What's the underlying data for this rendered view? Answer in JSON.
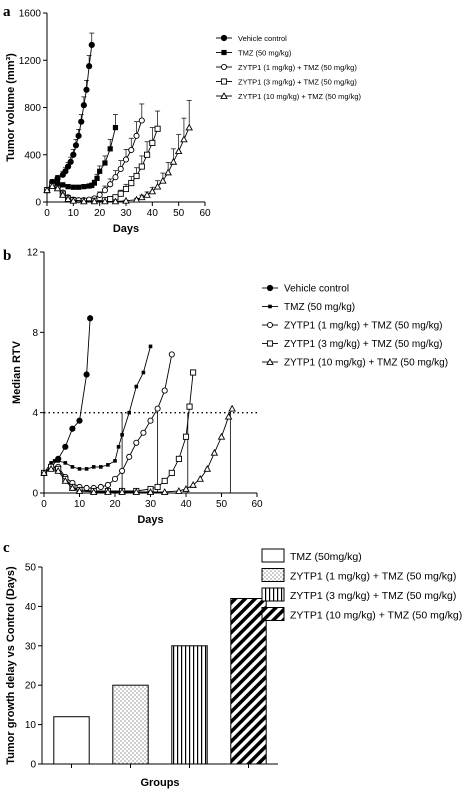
{
  "figure": {
    "panels": [
      "a",
      "b",
      "c"
    ]
  },
  "chart_data": [
    {
      "panel": "a",
      "type": "line",
      "xlabel": "Days",
      "ylabel": "Tumor volume (mm³)",
      "xlim": [
        0,
        60
      ],
      "ylim": [
        0,
        1600
      ],
      "xticks": [
        0,
        10,
        20,
        30,
        40,
        50,
        60
      ],
      "yticks": [
        0,
        400,
        800,
        1200,
        1600
      ],
      "legend_position": "right",
      "series": [
        {
          "name": "Vehicle control",
          "marker": "filled-circle",
          "line": "solid",
          "x": [
            0,
            2,
            4,
            6,
            7,
            8,
            9,
            10,
            11,
            12,
            13,
            14,
            15,
            16,
            17
          ],
          "y": [
            100,
            170,
            200,
            230,
            260,
            300,
            340,
            400,
            480,
            560,
            680,
            820,
            950,
            1150,
            1330
          ],
          "err": [
            0,
            20,
            25,
            30,
            30,
            35,
            40,
            45,
            50,
            55,
            60,
            70,
            80,
            90,
            100
          ]
        },
        {
          "name": "TMZ (50 mg/kg)",
          "marker": "filled-square",
          "line": "solid",
          "x": [
            0,
            2,
            4,
            6,
            8,
            10,
            12,
            14,
            16,
            17,
            18,
            19,
            20,
            22,
            24,
            26
          ],
          "y": [
            100,
            165,
            160,
            145,
            130,
            125,
            125,
            130,
            135,
            140,
            160,
            200,
            260,
            330,
            450,
            630
          ],
          "err": [
            0,
            20,
            20,
            18,
            15,
            15,
            15,
            15,
            18,
            20,
            25,
            35,
            45,
            60,
            80,
            110
          ]
        },
        {
          "name": "ZYTP1 (1 mg/kg) + TMZ (50 mg/kg)",
          "marker": "open-circle",
          "line": "solid",
          "x": [
            0,
            2,
            4,
            6,
            8,
            10,
            12,
            14,
            16,
            18,
            20,
            22,
            24,
            26,
            28,
            30,
            32,
            34,
            36
          ],
          "y": [
            100,
            140,
            120,
            80,
            40,
            20,
            15,
            15,
            20,
            30,
            60,
            100,
            150,
            210,
            280,
            360,
            440,
            560,
            690
          ],
          "err": [
            0,
            20,
            20,
            15,
            10,
            8,
            8,
            8,
            10,
            15,
            25,
            35,
            45,
            55,
            70,
            85,
            100,
            120,
            140
          ]
        },
        {
          "name": "ZYTP1 (3 mg/kg) + TMZ (50 mg/kg)",
          "marker": "open-square",
          "line": "solid",
          "x": [
            0,
            2,
            4,
            6,
            8,
            10,
            14,
            18,
            22,
            24,
            26,
            28,
            30,
            32,
            34,
            36,
            38,
            40,
            42
          ],
          "y": [
            100,
            140,
            120,
            70,
            30,
            15,
            10,
            10,
            15,
            25,
            40,
            70,
            110,
            160,
            220,
            300,
            400,
            500,
            620
          ],
          "err": [
            0,
            20,
            20,
            15,
            10,
            8,
            6,
            6,
            8,
            12,
            20,
            30,
            40,
            55,
            70,
            90,
            110,
            130,
            150
          ]
        },
        {
          "name": "ZYTP1 (10 mg/kg) + TMZ (50 mg/kg)",
          "marker": "open-triangle",
          "line": "solid",
          "x": [
            0,
            2,
            4,
            6,
            8,
            10,
            14,
            18,
            22,
            26,
            30,
            34,
            36,
            38,
            40,
            42,
            44,
            46,
            48,
            50,
            52,
            54
          ],
          "y": [
            100,
            135,
            115,
            60,
            25,
            10,
            5,
            5,
            5,
            5,
            10,
            20,
            40,
            60,
            90,
            130,
            180,
            250,
            340,
            430,
            530,
            630
          ],
          "err": [
            0,
            20,
            20,
            15,
            10,
            6,
            4,
            4,
            4,
            4,
            6,
            10,
            18,
            25,
            35,
            50,
            65,
            85,
            110,
            140,
            180,
            230
          ]
        }
      ]
    },
    {
      "panel": "b",
      "type": "line",
      "xlabel": "Days",
      "ylabel": "Median RTV",
      "xlim": [
        0,
        60
      ],
      "ylim": [
        0,
        12
      ],
      "xticks": [
        0,
        10,
        20,
        30,
        40,
        50,
        60
      ],
      "yticks": [
        0,
        4,
        8,
        12
      ],
      "reference_line": {
        "y": 4,
        "style": "dotted"
      },
      "drop_lines_x": [
        22,
        32,
        40.5,
        52.5
      ],
      "legend_position": "right",
      "series": [
        {
          "name": "Vehicle control",
          "marker": "filled-circle",
          "x": [
            0,
            2,
            4,
            6,
            8,
            10,
            12,
            13
          ],
          "y": [
            1.0,
            1.3,
            1.7,
            2.3,
            3.2,
            3.6,
            5.9,
            8.7
          ]
        },
        {
          "name": "TMZ (50 mg/kg)",
          "marker": "filled-square-small",
          "x": [
            0,
            2,
            3,
            4,
            6,
            8,
            10,
            12,
            14,
            16,
            18,
            20,
            21,
            22,
            24,
            26,
            28,
            30
          ],
          "y": [
            1.0,
            1.5,
            1.6,
            1.6,
            1.5,
            1.3,
            1.2,
            1.2,
            1.3,
            1.3,
            1.4,
            1.6,
            2.3,
            2.9,
            4.0,
            5.3,
            6.0,
            7.3
          ]
        },
        {
          "name": "ZYTP1 (1 mg/kg) + TMZ (50 mg/kg)",
          "marker": "open-circle",
          "x": [
            0,
            2,
            4,
            6,
            8,
            10,
            12,
            14,
            16,
            18,
            20,
            22,
            24,
            26,
            28,
            30,
            32,
            34,
            36
          ],
          "y": [
            1.0,
            1.3,
            1.3,
            0.8,
            0.5,
            0.3,
            0.25,
            0.25,
            0.3,
            0.4,
            0.7,
            1.1,
            1.8,
            2.5,
            3.0,
            3.6,
            4.2,
            5.1,
            6.9
          ]
        },
        {
          "name": "ZYTP1 (3 mg/kg) + TMZ (50 mg/kg)",
          "marker": "open-square",
          "x": [
            0,
            2,
            4,
            6,
            8,
            10,
            14,
            18,
            22,
            26,
            30,
            32,
            34,
            36,
            38,
            40,
            41,
            42
          ],
          "y": [
            1.0,
            1.3,
            1.2,
            0.7,
            0.3,
            0.15,
            0.1,
            0.1,
            0.1,
            0.1,
            0.2,
            0.3,
            0.6,
            1.0,
            1.7,
            2.8,
            4.3,
            6.0
          ]
        },
        {
          "name": "ZYTP1 (10 mg/kg) + TMZ (50 mg/kg)",
          "marker": "open-triangle",
          "x": [
            0,
            2,
            4,
            6,
            8,
            10,
            14,
            18,
            22,
            26,
            30,
            34,
            38,
            40,
            42,
            44,
            46,
            48,
            50,
            52,
            53
          ],
          "y": [
            1.0,
            1.2,
            1.1,
            0.6,
            0.25,
            0.1,
            0.05,
            0.05,
            0.05,
            0.05,
            0.05,
            0.05,
            0.1,
            0.2,
            0.4,
            0.7,
            1.2,
            2.0,
            2.8,
            3.8,
            4.2
          ]
        }
      ]
    },
    {
      "panel": "c",
      "type": "bar",
      "xlabel": "Groups",
      "ylabel": "Tumor growth delay vs Control (Days)",
      "ylim": [
        0,
        50
      ],
      "yticks": [
        0,
        10,
        20,
        30,
        40,
        50
      ],
      "legend_position": "top-right",
      "categories": [
        "TMZ (50mg/kg)",
        "ZYTP1 (1 mg/kg) + TMZ (50 mg/kg)",
        "ZYTP1 (3 mg/kg) + TMZ (50 mg/kg)",
        "ZYTP1 (10 mg/kg) + TMZ (50 mg/kg)"
      ],
      "patterns": [
        "solid-white",
        "dots",
        "vertical-lines",
        "diagonal-stripes"
      ],
      "values": [
        12,
        20,
        30,
        42
      ]
    }
  ]
}
